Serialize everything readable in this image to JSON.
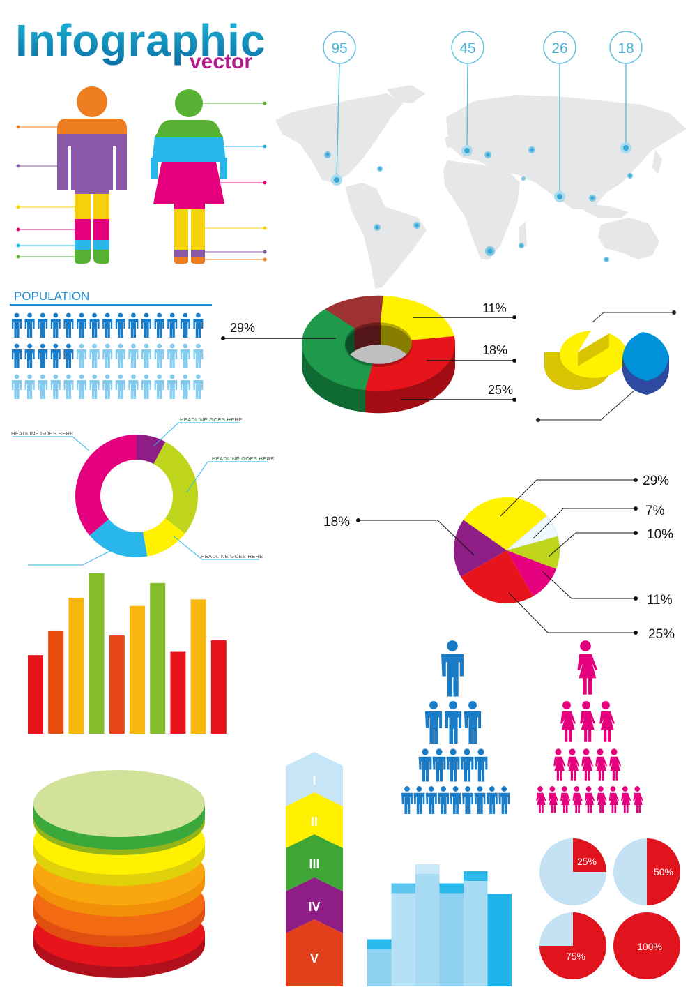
{
  "header": {
    "title": "Infographic",
    "subtitle": "vector",
    "title_color": "#0e86b6",
    "subtitle_color": "#b01e8c"
  },
  "population": {
    "label": "POPULATION",
    "color": "#1c8fd8",
    "rows": 3,
    "per_row": 15,
    "dark_counts": [
      15,
      5,
      0
    ],
    "dark_color": "#1a7bc6",
    "light_color": "#86ccef"
  },
  "map": {
    "land_color": "#e6e7e8",
    "callout_color": "#65bfe0",
    "callouts": [
      {
        "value": "95"
      },
      {
        "value": "45"
      },
      {
        "value": "26"
      },
      {
        "value": "18"
      }
    ]
  },
  "palette": {
    "green": "#1e9a4a",
    "red": "#e8141c",
    "yellow": "#fff100",
    "maroon": "#9e3132",
    "magenta": "#e5007e",
    "purple": "#8e1d86",
    "lime": "#bfd51b",
    "cyan": "#29b6ea",
    "blue": "#0099db",
    "orange": "#f07d0e"
  },
  "chart_data": [
    {
      "id": "donut3d",
      "type": "pie",
      "categories": [
        "",
        "",
        "",
        ""
      ],
      "values": [
        29,
        11,
        18,
        25
      ],
      "labels": [
        "29%",
        "11%",
        "18%",
        "25%"
      ]
    },
    {
      "id": "headline-donut",
      "type": "pie",
      "categories": [
        "HEADLINE GOES HERE",
        "HEADLINE GOES HERE",
        "HEADLINE GOES HERE",
        "HEADLINE GOES HERE"
      ],
      "values": [
        30,
        15,
        22,
        33
      ],
      "labels": [
        "HEADLINE GOES HERE",
        "HEADLINE GOES HERE",
        "HEADLINE GOES HERE",
        "HEADLINE GOES HERE"
      ]
    },
    {
      "id": "pie-flat",
      "type": "pie",
      "values": [
        29,
        7,
        10,
        11,
        25,
        18
      ],
      "labels": [
        "29%",
        "7%",
        "10%",
        "11%",
        "25%",
        "18%"
      ]
    },
    {
      "id": "bars",
      "type": "bar",
      "values": [
        48,
        63,
        83,
        98,
        60,
        78,
        92,
        50,
        82,
        57
      ],
      "ylim": [
        0,
        100
      ]
    },
    {
      "id": "chevrons",
      "type": "table",
      "labels": [
        "I",
        "II",
        "III",
        "IV",
        "V"
      ]
    },
    {
      "id": "blue-bars",
      "type": "bar",
      "values": [
        27,
        59,
        70,
        59,
        66,
        53
      ],
      "ylim": [
        0,
        100
      ]
    },
    {
      "id": "quarter-pies",
      "type": "pie",
      "values": [
        25,
        50,
        75,
        100
      ],
      "labels": [
        "25%",
        "50%",
        "75%",
        "100%"
      ]
    }
  ]
}
